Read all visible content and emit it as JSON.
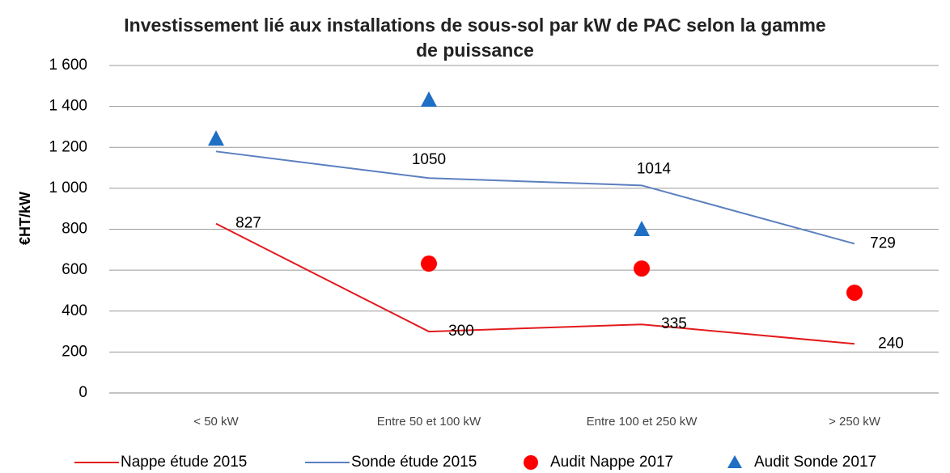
{
  "chart_data": {
    "type": "line",
    "title": "Investissement lié aux installations de sous-sol par kW de PAC selon la gamme de puissance",
    "y_label": "€HT/kW",
    "categories": [
      "< 50 kW",
      "Entre 50 et 100 kW",
      "Entre 100 et 250 kW",
      "> 250 kW"
    ],
    "series": [
      {
        "name": "Nappe étude 2015",
        "color": "#e31a1c",
        "kind": "line",
        "values": [
          827,
          300,
          335,
          240
        ],
        "value_labels": [
          "827",
          "300",
          "335",
          "240"
        ]
      },
      {
        "name": "Sonde étude 2015",
        "color": "#5b7fbf",
        "kind": "line",
        "values": [
          1180,
          1050,
          1014,
          729
        ],
        "value_labels": [
          null,
          "1050",
          "1014",
          "729"
        ]
      },
      {
        "name": "Audit Nappe 2017",
        "color": "#ff0000",
        "kind": "circle",
        "values": [
          null,
          632,
          608,
          490
        ]
      },
      {
        "name": "Audit Sonde 2017",
        "color": "#1f6fc5",
        "kind": "triangle",
        "values": [
          1240,
          1430,
          798,
          null
        ]
      }
    ],
    "ylim": [
      0,
      1600
    ],
    "yticks": [
      0,
      200,
      400,
      600,
      800,
      {
        "value": 1000,
        "label": "1 000"
      },
      {
        "value": 1200,
        "label": "1 200"
      },
      {
        "value": 1400,
        "label": "1 400"
      },
      {
        "value": 1600,
        "label": "1 600"
      }
    ],
    "grid": true,
    "legend": "bottom"
  }
}
